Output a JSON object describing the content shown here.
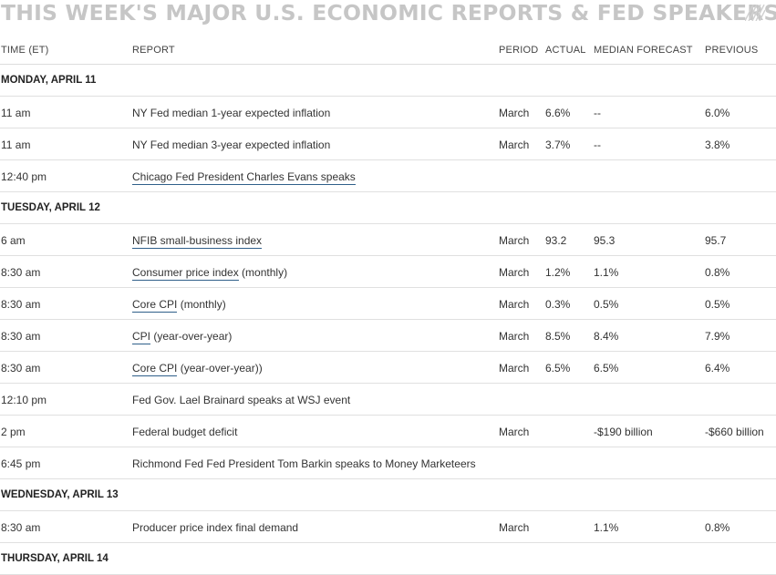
{
  "title": "THIS WEEK'S MAJOR U.S. ECONOMIC REPORTS & FED SPEAKERS",
  "icons": {
    "title_decoration": "diagonal-stripes-icon"
  },
  "colors": {
    "title": "#c6c6c6",
    "link_underline": "#2f5f8a",
    "rule": "#e0e0e0"
  },
  "headers": {
    "time": "TIME (ET)",
    "report": "REPORT",
    "period": "PERIOD",
    "actual": "ACTUAL",
    "median": "MEDIAN FORECAST",
    "previous": "PREVIOUS"
  },
  "rows": [
    {
      "type": "day",
      "label": "MONDAY, APRIL 11"
    },
    {
      "type": "item",
      "time": "11 am",
      "report_link": "",
      "report_rest": "NY Fed median 1-year expected inflation",
      "period": "March",
      "actual": "6.6%",
      "median": "--",
      "previous": "6.0%"
    },
    {
      "type": "item",
      "time": "11 am",
      "report_link": "",
      "report_rest": "NY Fed median 3-year expected inflation",
      "period": "March",
      "actual": "3.7%",
      "median": "--",
      "previous": "3.8%"
    },
    {
      "type": "item",
      "time": "12:40 pm",
      "report_link": "Chicago Fed President Charles Evans speaks",
      "report_rest": "",
      "period": "",
      "actual": "",
      "median": "",
      "previous": ""
    },
    {
      "type": "day",
      "label": "TUESDAY, APRIL 12"
    },
    {
      "type": "item",
      "time": "6 am",
      "report_link": "NFIB small-business index",
      "report_rest": "",
      "period": "March",
      "actual": "93.2",
      "median": "95.3",
      "previous": "95.7"
    },
    {
      "type": "item",
      "time": "8:30 am",
      "report_link": "Consumer price index",
      "report_rest": " (monthly)",
      "period": "March",
      "actual": "1.2%",
      "median": "1.1%",
      "previous": "0.8%"
    },
    {
      "type": "item",
      "time": "8:30 am",
      "report_link": "Core CPI",
      "report_rest": " (monthly)",
      "period": "March",
      "actual": "0.3%",
      "median": "0.5%",
      "previous": "0.5%"
    },
    {
      "type": "item",
      "time": "8:30 am",
      "report_link": "CPI",
      "report_rest": " (year-over-year)",
      "period": "March",
      "actual": "8.5%",
      "median": "8.4%",
      "previous": "7.9%"
    },
    {
      "type": "item",
      "time": "8:30 am",
      "report_link": "Core CPI",
      "report_rest": " (year-over-year))",
      "period": "March",
      "actual": "6.5%",
      "median": "6.5%",
      "previous": "6.4%"
    },
    {
      "type": "item",
      "time": "12:10 pm",
      "report_link": "",
      "report_rest": "Fed Gov. Lael Brainard speaks at WSJ event",
      "period": "",
      "actual": "",
      "median": "",
      "previous": ""
    },
    {
      "type": "item",
      "time": "2 pm",
      "report_link": "",
      "report_rest": "Federal budget deficit",
      "period": "March",
      "actual": "",
      "median": "-$190 billion",
      "previous": "-$660 billion"
    },
    {
      "type": "item",
      "time": "6:45 pm",
      "report_link": "",
      "report_rest": "Richmond Fed Fed President Tom Barkin speaks to Money Marketeers",
      "period": "",
      "actual": "",
      "median": "",
      "previous": ""
    },
    {
      "type": "day",
      "label": "WEDNESDAY, APRIL 13"
    },
    {
      "type": "item",
      "time": "8:30 am",
      "report_link": "",
      "report_rest": "Producer price index final demand",
      "period": "March",
      "actual": "",
      "median": "1.1%",
      "previous": "0.8%"
    },
    {
      "type": "day",
      "label": "THURSDAY, APRIL 14"
    }
  ]
}
